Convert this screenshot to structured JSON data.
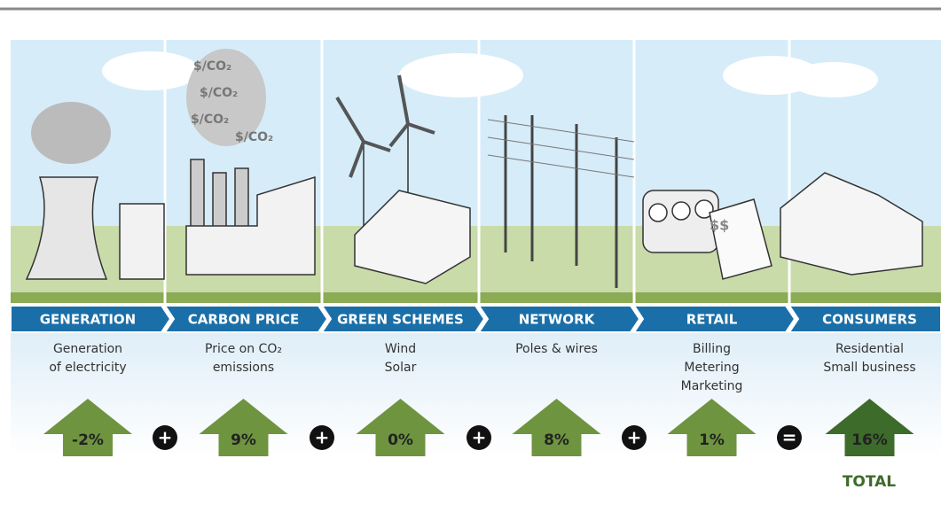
{
  "stages": [
    {
      "title": "GENERATION",
      "description": [
        "Generation",
        "of electricity"
      ],
      "change": "-2%"
    },
    {
      "title": "CARBON PRICE",
      "description": [
        "Price on CO₂",
        "emissions"
      ],
      "change": "9%"
    },
    {
      "title": "GREEN SCHEMES",
      "description": [
        "Wind",
        "Solar"
      ],
      "change": "0%"
    },
    {
      "title": "NETWORK",
      "description": [
        "Poles & wires"
      ],
      "change": "8%"
    },
    {
      "title": "RETAIL",
      "description": [
        "Billing",
        "Metering",
        "Marketing"
      ],
      "change": "1%"
    },
    {
      "title": "CONSUMERS",
      "description": [
        "Residential",
        "Small business"
      ],
      "change": "16%"
    }
  ],
  "operators": [
    "+",
    "+",
    "+",
    "+",
    "="
  ],
  "total_label": "TOTAL",
  "smoke_labels": [
    "$/CO₂",
    "$/CO₂",
    "$/CO₂",
    "$/CO₂"
  ],
  "bill_label": "$$"
}
